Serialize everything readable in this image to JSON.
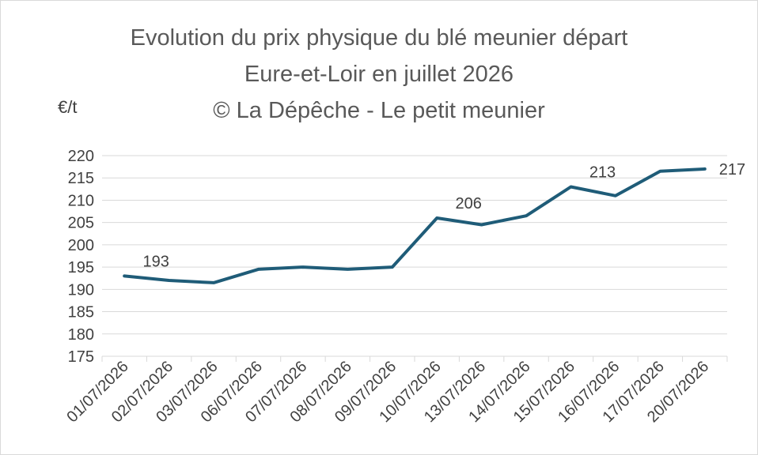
{
  "chart_data": {
    "type": "line",
    "title_lines": [
      "Evolution du prix physique du blé meunier départ",
      "Eure-et-Loir en juillet 2026",
      "© La Dépêche - Le petit meunier"
    ],
    "ylabel": "€/t",
    "xlabel": "",
    "ylim": [
      175,
      220
    ],
    "ytick_step": 5,
    "grid": true,
    "legend": "none",
    "categories": [
      "01/07/2026",
      "02/07/2026",
      "03/07/2026",
      "06/07/2026",
      "07/07/2026",
      "08/07/2026",
      "09/07/2026",
      "10/07/2026",
      "13/07/2026",
      "14/07/2026",
      "15/07/2026",
      "16/07/2026",
      "17/07/2026",
      "20/07/2026"
    ],
    "series": [
      {
        "color": "#1f5c78",
        "values": [
          193,
          192,
          191.5,
          194.5,
          195,
          194.5,
          195,
          206,
          204.5,
          206.5,
          213,
          211,
          216.5,
          217
        ]
      }
    ],
    "data_labels": [
      {
        "index": 0,
        "text": "193"
      },
      {
        "index": 7,
        "text": "206"
      },
      {
        "index": 10,
        "text": "213"
      },
      {
        "index": 13,
        "text": "217"
      }
    ]
  }
}
